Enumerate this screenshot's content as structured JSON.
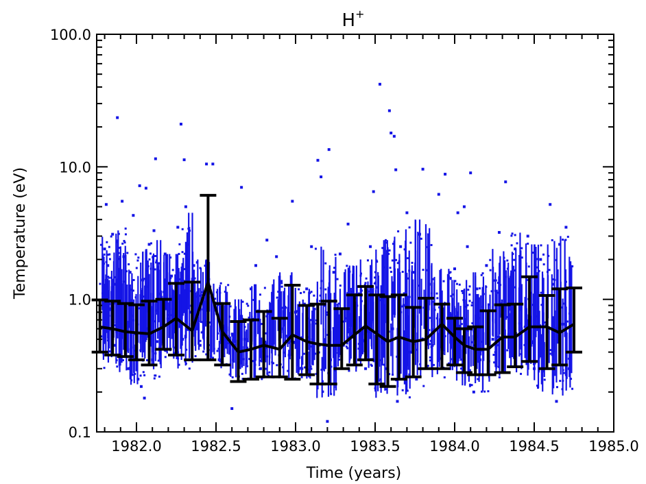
{
  "chart_data": {
    "type": "scatter",
    "title": "H",
    "title_superscript": "+",
    "xlabel": "Time (years)",
    "ylabel": "Temperature (eV)",
    "xlim": [
      1981.75,
      1985.0
    ],
    "ylim": [
      0.1,
      100.0
    ],
    "y_scale": "log",
    "grid": false,
    "x_tick_labels": [
      "1982.0",
      "1982.5",
      "1983.0",
      "1983.5",
      "1984.0",
      "1984.5",
      "1985.0"
    ],
    "y_tick_labels": [
      "0.1",
      "1.0",
      "10.0",
      "100.0"
    ],
    "colors": {
      "scatter": "#1414e6",
      "line": "#000000"
    },
    "series": [
      {
        "style": "scatter",
        "points": [
          [
            1981.8,
            0.65
          ],
          [
            1981.8,
            2.4
          ],
          [
            1981.81,
            5.2
          ],
          [
            1981.82,
            1.8
          ],
          [
            1981.84,
            0.85
          ],
          [
            1981.85,
            3.1
          ],
          [
            1981.86,
            0.45
          ],
          [
            1981.87,
            1.3
          ],
          [
            1981.88,
            23.5
          ],
          [
            1981.89,
            0.38
          ],
          [
            1981.9,
            0.9
          ],
          [
            1981.91,
            5.5
          ],
          [
            1981.92,
            2.1
          ],
          [
            1981.94,
            0.55
          ],
          [
            1981.95,
            0.3
          ],
          [
            1981.96,
            1.6
          ],
          [
            1981.97,
            0.75
          ],
          [
            1981.98,
            4.3
          ],
          [
            1982.0,
            0.5
          ],
          [
            1982.01,
            0.25
          ],
          [
            1982.02,
            7.2
          ],
          [
            1982.03,
            0.22
          ],
          [
            1982.04,
            1.4
          ],
          [
            1982.05,
            0.18
          ],
          [
            1982.06,
            6.9
          ],
          [
            1982.07,
            0.6
          ],
          [
            1982.08,
            2.6
          ],
          [
            1982.1,
            0.35
          ],
          [
            1982.11,
            3.3
          ],
          [
            1982.12,
            11.5
          ],
          [
            1982.13,
            0.48
          ],
          [
            1982.14,
            1.1
          ],
          [
            1982.16,
            0.8
          ],
          [
            1982.18,
            2.2
          ],
          [
            1982.2,
            0.42
          ],
          [
            1982.22,
            1.5
          ],
          [
            1982.24,
            0.7
          ],
          [
            1982.26,
            3.5
          ],
          [
            1982.28,
            21.0
          ],
          [
            1982.29,
            0.5
          ],
          [
            1982.3,
            11.3
          ],
          [
            1982.31,
            5.0
          ],
          [
            1982.32,
            2.6
          ],
          [
            1982.33,
            0.35
          ],
          [
            1982.34,
            0.8
          ],
          [
            1982.36,
            1.8
          ],
          [
            1982.38,
            0.6
          ],
          [
            1982.4,
            0.45
          ],
          [
            1982.44,
            10.5
          ],
          [
            1982.45,
            1.4
          ],
          [
            1982.48,
            10.5
          ],
          [
            1982.52,
            0.35
          ],
          [
            1982.55,
            0.6
          ],
          [
            1982.6,
            0.15
          ],
          [
            1982.66,
            7.0
          ],
          [
            1982.68,
            0.5
          ],
          [
            1982.72,
            1.2
          ],
          [
            1982.75,
            1.8
          ],
          [
            1982.78,
            0.3
          ],
          [
            1982.82,
            2.8
          ],
          [
            1982.85,
            0.45
          ],
          [
            1982.88,
            2.1
          ],
          [
            1982.92,
            0.6
          ],
          [
            1982.96,
            0.38
          ],
          [
            1982.98,
            5.5
          ],
          [
            1983.0,
            0.8
          ],
          [
            1983.04,
            0.3
          ],
          [
            1983.07,
            1.2
          ],
          [
            1983.1,
            2.5
          ],
          [
            1983.14,
            11.2
          ],
          [
            1983.16,
            8.4
          ],
          [
            1983.18,
            0.9
          ],
          [
            1983.2,
            0.12
          ],
          [
            1983.21,
            13.5
          ],
          [
            1983.22,
            0.35
          ],
          [
            1983.24,
            1.6
          ],
          [
            1983.26,
            0.6
          ],
          [
            1983.28,
            2.2
          ],
          [
            1983.3,
            0.45
          ],
          [
            1983.33,
            3.7
          ],
          [
            1983.36,
            0.55
          ],
          [
            1983.4,
            1.1
          ],
          [
            1983.44,
            0.3
          ],
          [
            1983.47,
            2.5
          ],
          [
            1983.49,
            6.5
          ],
          [
            1983.51,
            0.8
          ],
          [
            1983.53,
            42.0
          ],
          [
            1983.55,
            1.4
          ],
          [
            1983.57,
            0.3
          ],
          [
            1983.59,
            26.5
          ],
          [
            1983.6,
            18.0
          ],
          [
            1983.61,
            0.6
          ],
          [
            1983.62,
            17.0
          ],
          [
            1983.63,
            9.5
          ],
          [
            1983.64,
            0.17
          ],
          [
            1983.66,
            2.5
          ],
          [
            1983.68,
            0.9
          ],
          [
            1983.7,
            4.5
          ],
          [
            1983.72,
            0.4
          ],
          [
            1983.74,
            1.6
          ],
          [
            1983.76,
            0.25
          ],
          [
            1983.78,
            3.1
          ],
          [
            1983.8,
            9.6
          ],
          [
            1983.82,
            0.7
          ],
          [
            1983.84,
            1.3
          ],
          [
            1983.86,
            0.45
          ],
          [
            1983.9,
            6.2
          ],
          [
            1983.92,
            0.9
          ],
          [
            1983.94,
            8.8
          ],
          [
            1983.97,
            0.3
          ],
          [
            1984.0,
            1.7
          ],
          [
            1984.02,
            4.5
          ],
          [
            1984.04,
            0.6
          ],
          [
            1984.06,
            5.0
          ],
          [
            1984.08,
            2.5
          ],
          [
            1984.1,
            9.0
          ],
          [
            1984.12,
            0.2
          ],
          [
            1984.14,
            1.2
          ],
          [
            1984.16,
            0.35
          ],
          [
            1984.2,
            1.8
          ],
          [
            1984.24,
            0.5
          ],
          [
            1984.28,
            3.2
          ],
          [
            1984.32,
            7.7
          ],
          [
            1984.35,
            0.4
          ],
          [
            1984.38,
            2.4
          ],
          [
            1984.42,
            0.6
          ],
          [
            1984.46,
            3.0
          ],
          [
            1984.5,
            0.3
          ],
          [
            1984.54,
            2.0
          ],
          [
            1984.58,
            0.45
          ],
          [
            1984.6,
            5.2
          ],
          [
            1984.62,
            1.3
          ],
          [
            1984.64,
            0.17
          ],
          [
            1984.66,
            2.6
          ],
          [
            1984.68,
            0.65
          ],
          [
            1984.7,
            3.5
          ],
          [
            1984.72,
            0.3
          ]
        ],
        "bands": [
          [
            1981.77,
            1981.86,
            0.3,
            3.0
          ],
          [
            1981.86,
            1981.96,
            0.28,
            3.5
          ],
          [
            1981.96,
            1982.06,
            0.22,
            2.4
          ],
          [
            1982.06,
            1982.16,
            0.25,
            2.8
          ],
          [
            1982.16,
            1982.26,
            0.35,
            2.2
          ],
          [
            1982.26,
            1982.36,
            0.3,
            4.5
          ],
          [
            1982.36,
            1982.46,
            0.35,
            2.0
          ],
          [
            1982.46,
            1982.58,
            0.3,
            1.4
          ],
          [
            1982.58,
            1982.72,
            0.25,
            1.0
          ],
          [
            1982.72,
            1982.86,
            0.25,
            1.3
          ],
          [
            1982.86,
            1983.0,
            0.25,
            1.6
          ],
          [
            1983.0,
            1983.12,
            0.25,
            1.2
          ],
          [
            1983.12,
            1983.26,
            0.18,
            2.5
          ],
          [
            1983.26,
            1983.4,
            0.28,
            1.8
          ],
          [
            1983.4,
            1983.5,
            0.3,
            2.0
          ],
          [
            1983.5,
            1983.6,
            0.18,
            2.8
          ],
          [
            1983.6,
            1983.72,
            0.18,
            3.6
          ],
          [
            1983.72,
            1983.86,
            0.22,
            4.0
          ],
          [
            1983.86,
            1983.98,
            0.25,
            1.7
          ],
          [
            1983.98,
            1984.1,
            0.22,
            1.4
          ],
          [
            1984.1,
            1984.22,
            0.2,
            1.6
          ],
          [
            1984.22,
            1984.34,
            0.25,
            2.4
          ],
          [
            1984.34,
            1984.48,
            0.25,
            3.5
          ],
          [
            1984.48,
            1984.6,
            0.2,
            2.6
          ],
          [
            1984.6,
            1984.74,
            0.18,
            3.0
          ]
        ]
      },
      {
        "style": "line_errorbar",
        "x": [
          1981.77,
          1981.85,
          1981.93,
          1982.0,
          1982.08,
          1982.17,
          1982.25,
          1982.35,
          1982.45,
          1982.54,
          1982.64,
          1982.72,
          1982.8,
          1982.9,
          1982.98,
          1983.07,
          1983.14,
          1983.21,
          1983.29,
          1983.37,
          1983.44,
          1983.51,
          1983.58,
          1983.65,
          1983.74,
          1983.82,
          1983.92,
          1984.0,
          1984.06,
          1984.13,
          1984.21,
          1984.3,
          1984.38,
          1984.47,
          1984.58,
          1984.66,
          1984.75
        ],
        "y": [
          0.62,
          0.6,
          0.57,
          0.56,
          0.55,
          0.62,
          0.72,
          0.58,
          1.35,
          0.57,
          0.4,
          0.42,
          0.45,
          0.42,
          0.54,
          0.48,
          0.46,
          0.45,
          0.45,
          0.54,
          0.63,
          0.55,
          0.48,
          0.52,
          0.48,
          0.5,
          0.65,
          0.52,
          0.45,
          0.42,
          0.42,
          0.52,
          0.52,
          0.62,
          0.62,
          0.56,
          0.65
        ],
        "y_low": [
          0.4,
          0.38,
          0.37,
          0.35,
          0.32,
          0.42,
          0.38,
          0.35,
          0.35,
          0.32,
          0.24,
          0.25,
          0.26,
          0.26,
          0.25,
          0.27,
          0.23,
          0.23,
          0.3,
          0.32,
          0.35,
          0.23,
          0.22,
          0.25,
          0.26,
          0.3,
          0.3,
          0.32,
          0.28,
          0.27,
          0.27,
          0.28,
          0.31,
          0.34,
          0.3,
          0.32,
          0.4
        ],
        "y_high": [
          0.99,
          0.97,
          0.93,
          0.91,
          0.97,
          1.0,
          1.32,
          1.35,
          6.1,
          0.93,
          0.68,
          0.7,
          0.81,
          0.72,
          1.28,
          0.9,
          0.92,
          0.97,
          0.85,
          1.08,
          1.25,
          1.08,
          1.05,
          1.08,
          0.87,
          1.02,
          0.92,
          0.72,
          0.6,
          0.62,
          0.82,
          0.91,
          0.92,
          1.48,
          1.07,
          1.2,
          1.22
        ]
      }
    ]
  }
}
